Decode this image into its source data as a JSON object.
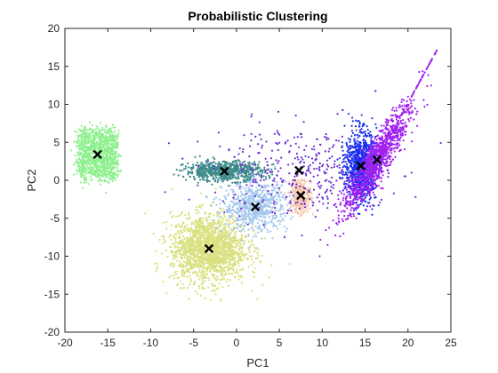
{
  "chart_data": {
    "type": "scatter",
    "title": "Probabilistic Clustering",
    "xlabel": "PC1",
    "ylabel": "PC2",
    "xlim": [
      -20,
      25
    ],
    "ylim": [
      -20,
      20
    ],
    "xticks": [
      -20,
      -15,
      -10,
      -5,
      0,
      5,
      10,
      15,
      20,
      25
    ],
    "yticks": [
      -20,
      -15,
      -10,
      -5,
      0,
      5,
      10,
      15,
      20
    ],
    "xtick_labels": [
      "-20",
      "-15",
      "-10",
      "-5",
      "0",
      "5",
      "10",
      "15",
      "20",
      "25"
    ],
    "ytick_labels": [
      "-20",
      "-15",
      "-10",
      "-5",
      "0",
      "5",
      "10",
      "15",
      "20"
    ],
    "grid": false,
    "legend": false,
    "clusters": [
      {
        "color": "#8ef08e",
        "center": [
          -16.2,
          3.4
        ],
        "shape": "box",
        "spread": [
          4.4,
          7.5
        ],
        "n": 1100
      },
      {
        "color": "#d9e07e",
        "center": [
          -3.2,
          -9.0
        ],
        "shape": "gauss",
        "spread": [
          2.2,
          2.2
        ],
        "n": 1800
      },
      {
        "color": "#3d8a8a",
        "center": [
          -1.4,
          1.2
        ],
        "shape": "gauss",
        "spread": [
          2.3,
          0.65
        ],
        "n": 700
      },
      {
        "color": "#a3c7ee",
        "center": [
          2.2,
          -3.5
        ],
        "shape": "gauss",
        "spread": [
          1.9,
          1.6
        ],
        "n": 700
      },
      {
        "color": "#f5c7aa",
        "center": [
          7.5,
          -2.0
        ],
        "shape": "gauss",
        "spread": [
          0.6,
          1.2
        ],
        "n": 300
      },
      {
        "color": "#6b2fd0",
        "center": [
          7.3,
          1.3
        ],
        "shape": "sparse",
        "spread": [
          5.0,
          3.0
        ],
        "n": 350
      },
      {
        "color": "#1a2ff0",
        "center": [
          14.5,
          1.9
        ],
        "shape": "gauss",
        "spread": [
          0.9,
          2.3
        ],
        "n": 900
      },
      {
        "color": "#a020f0",
        "center": [
          16.4,
          2.7
        ],
        "shape": "diag",
        "spread": [
          1.2,
          3.5
        ],
        "n": 1100
      }
    ],
    "centroids": [
      {
        "x": -16.2,
        "y": 3.4
      },
      {
        "x": -1.4,
        "y": 1.2
      },
      {
        "x": 7.3,
        "y": 1.3
      },
      {
        "x": 14.5,
        "y": 1.9
      },
      {
        "x": 16.4,
        "y": 2.7
      },
      {
        "x": 7.5,
        "y": -2.0
      },
      {
        "x": 2.2,
        "y": -3.5
      },
      {
        "x": -3.2,
        "y": -9.0
      }
    ],
    "centroid_marker": "x",
    "centroid_color": "#000000"
  }
}
